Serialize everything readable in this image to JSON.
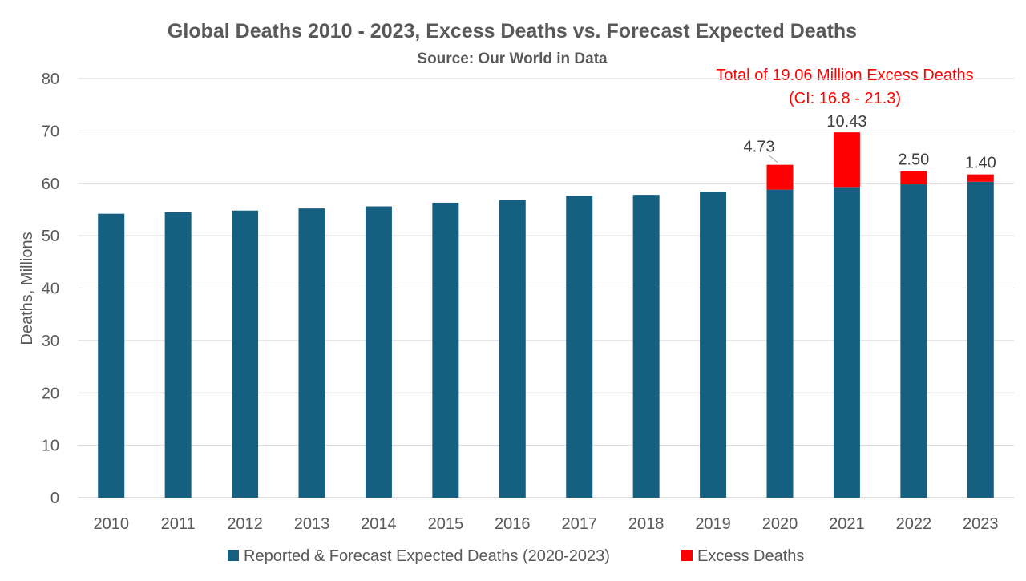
{
  "chart_data": {
    "type": "bar",
    "stacked": true,
    "title": "Global Deaths 2010 - 2023, Excess Deaths vs. Forecast Expected Deaths",
    "subtitle": "Source: Our World in Data",
    "ylabel": "Deaths, Millions",
    "xlabel": "",
    "ylim": [
      0,
      80
    ],
    "yticks": [
      0,
      10,
      20,
      30,
      40,
      50,
      60,
      70,
      80
    ],
    "grid": true,
    "legend_position": "bottom",
    "annotation": {
      "line1": "Total of 19.06 Million Excess Deaths",
      "line2": "(CI: 16.8 - 21.3)",
      "color": "#ff0000"
    },
    "categories": [
      "2010",
      "2011",
      "2012",
      "2013",
      "2014",
      "2015",
      "2016",
      "2017",
      "2018",
      "2019",
      "2020",
      "2021",
      "2022",
      "2023"
    ],
    "series": [
      {
        "name": "Reported & Forecast Expected Deaths (2020-2023)",
        "color": "#155f81",
        "values": [
          54.2,
          54.5,
          54.8,
          55.2,
          55.6,
          56.3,
          56.8,
          57.6,
          57.8,
          58.4,
          58.8,
          59.3,
          59.8,
          60.3
        ]
      },
      {
        "name": "Excess Deaths",
        "color": "#ff0000",
        "values": [
          0,
          0,
          0,
          0,
          0,
          0,
          0,
          0,
          0,
          0,
          4.73,
          10.43,
          2.5,
          1.4
        ],
        "labels": [
          "",
          "",
          "",
          "",
          "",
          "",
          "",
          "",
          "",
          "",
          "4.73",
          "10.43",
          "2.50",
          "1.40"
        ]
      }
    ]
  }
}
